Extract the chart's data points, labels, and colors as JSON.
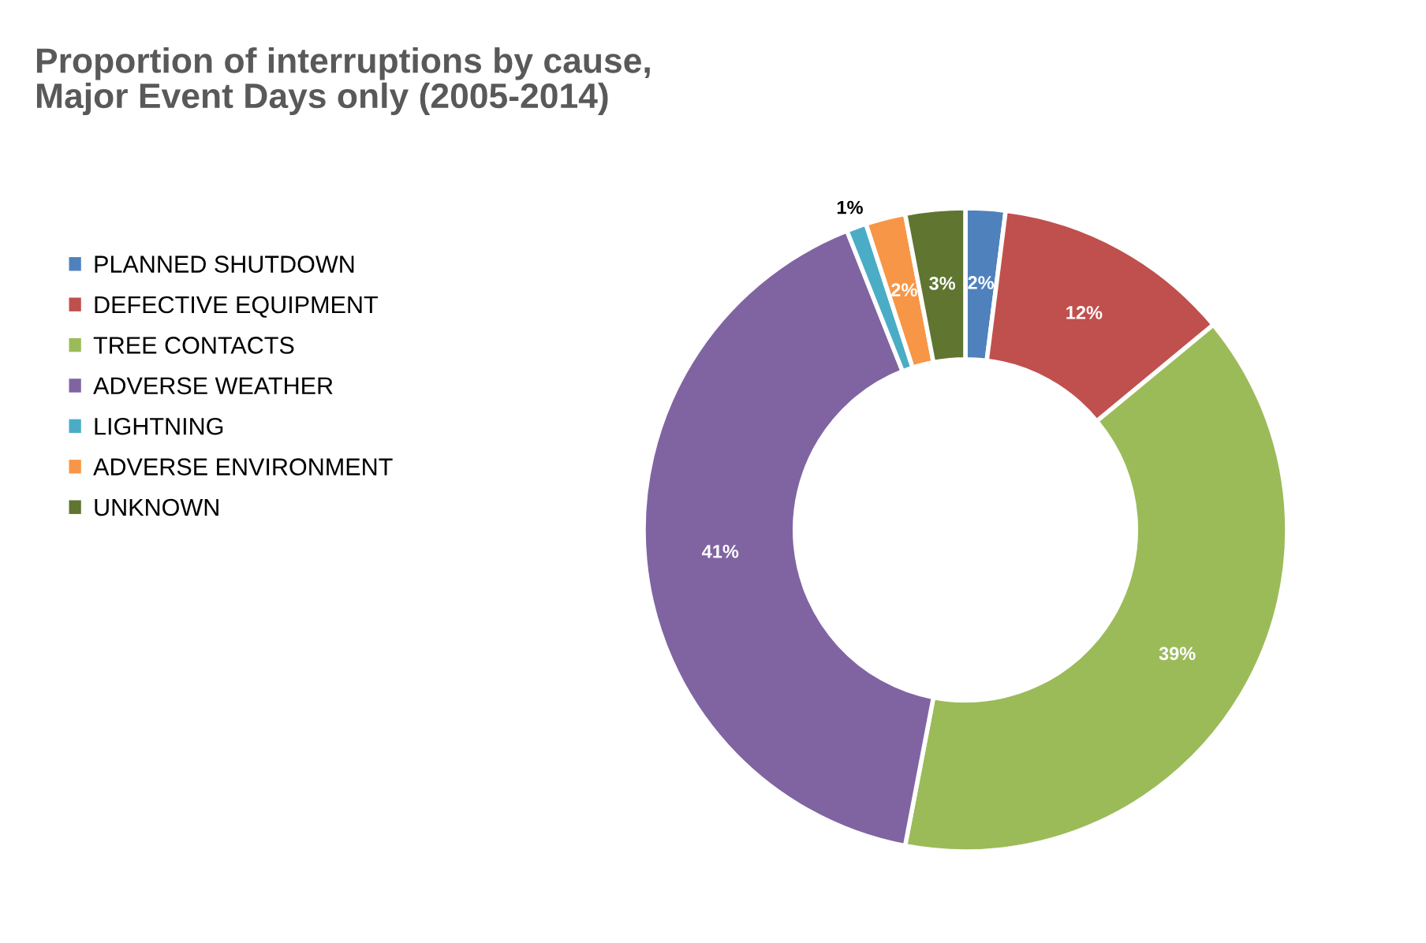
{
  "chart_data": {
    "type": "donut",
    "title": "Proportion of interruptions by cause,\nMajor Event Days only (2005-2014)",
    "categories": [
      "PLANNED SHUTDOWN",
      "DEFECTIVE EQUIPMENT",
      "TREE CONTACTS",
      "ADVERSE WEATHER",
      "LIGHTNING",
      "ADVERSE ENVIRONMENT",
      "UNKNOWN"
    ],
    "values": [
      2,
      12,
      39,
      41,
      1,
      2,
      3
    ],
    "colors": [
      "#4f81bd",
      "#c0504d",
      "#9bbb59",
      "#8064a2",
      "#4bacc6",
      "#f79646",
      "#5f7530"
    ],
    "value_labels": [
      "2%",
      "12%",
      "39%",
      "41%",
      "1%",
      "2%",
      "3%"
    ],
    "legend": "left"
  }
}
